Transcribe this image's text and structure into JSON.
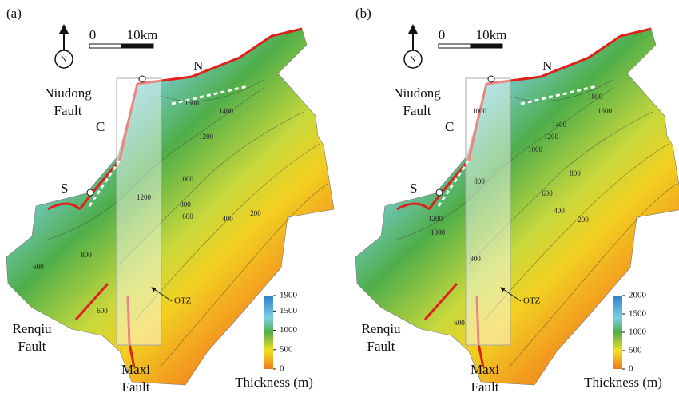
{
  "panels": [
    {
      "label": "(a)",
      "compass": "N",
      "scale": {
        "start": "0",
        "end": "10km"
      },
      "points": {
        "north": "N",
        "center": "C",
        "south": "S"
      },
      "niudong_fault": [
        "Niudong",
        "Fault"
      ],
      "renqiu_fault": [
        "Renqiu",
        "Fault"
      ],
      "maxi_fault": [
        "Maxi",
        "Fault"
      ],
      "zone": "OTZ",
      "legend": {
        "title": "Thickness (m)",
        "range": [
          0,
          1900
        ],
        "ticks": [
          1900,
          1500,
          1000,
          500,
          0
        ]
      },
      "contours": [
        1600,
        1400,
        1200,
        1000,
        1200,
        800,
        600,
        400,
        200,
        800,
        600,
        600
      ]
    },
    {
      "label": "(b)",
      "compass": "N",
      "scale": {
        "start": "0",
        "end": "10km"
      },
      "points": {
        "north": "N",
        "center": "C",
        "south": "S"
      },
      "niudong_fault": [
        "Niudong",
        "Fault"
      ],
      "renqiu_fault": [
        "Renqiu",
        "Fault"
      ],
      "maxi_fault": [
        "Maxi",
        "Fault"
      ],
      "zone": "OTZ",
      "legend": {
        "title": "Thickness (m)",
        "range": [
          0,
          2000
        ],
        "ticks": [
          2000,
          1500,
          1000,
          500,
          0
        ]
      },
      "contours": [
        1800,
        1600,
        1400,
        1200,
        1000,
        800,
        600,
        400,
        200,
        1200,
        1000,
        1000,
        800,
        800,
        600
      ]
    }
  ]
}
